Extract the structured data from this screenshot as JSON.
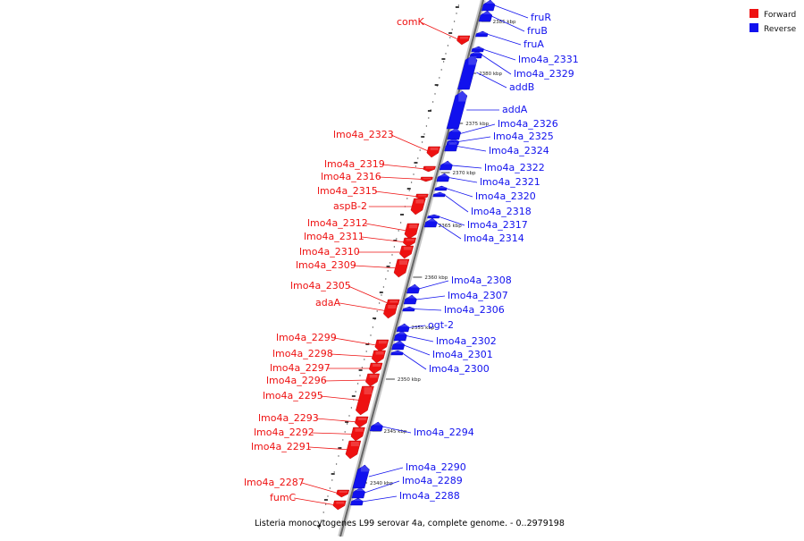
{
  "caption": "Listeria monocytogenes L99 serovar 4a, complete genome. - 0..2979198",
  "legend": [
    {
      "label": "Forward",
      "color": "#ee1111"
    },
    {
      "label": "Reverse",
      "color": "#1111ee"
    }
  ],
  "colors": {
    "forward": "#ee1111",
    "reverse": "#1111ee",
    "backbone": "#777777"
  },
  "ticks": [
    {
      "label": "2385 kbp",
      "pos": 2385
    },
    {
      "label": "2380 kbp",
      "pos": 2380
    },
    {
      "label": "2375 kbp",
      "pos": 2375
    },
    {
      "label": "2370 kbp",
      "pos": 2370
    },
    {
      "label": "2365 kbp",
      "pos": 2365
    },
    {
      "label": "2360 kbp",
      "pos": 2360
    },
    {
      "label": "2355 kbp",
      "pos": 2355
    },
    {
      "label": "2350 kbp",
      "pos": 2350
    },
    {
      "label": "2345 kbp",
      "pos": 2345
    },
    {
      "label": "2340 kbp",
      "pos": 2340
    }
  ],
  "genes": [
    {
      "name": "fruR",
      "strand": "reverse"
    },
    {
      "name": "fruB",
      "strand": "reverse"
    },
    {
      "name": "fruA",
      "strand": "reverse"
    },
    {
      "name": "comK",
      "strand": "forward"
    },
    {
      "name": "lmo4a_2331",
      "strand": "reverse"
    },
    {
      "name": "lmo4a_2329",
      "strand": "reverse"
    },
    {
      "name": "addB",
      "strand": "reverse"
    },
    {
      "name": "addA",
      "strand": "reverse"
    },
    {
      "name": "lmo4a_2326",
      "strand": "reverse"
    },
    {
      "name": "lmo4a_2325",
      "strand": "reverse"
    },
    {
      "name": "lmo4a_2324",
      "strand": "reverse"
    },
    {
      "name": "lmo4a_2323",
      "strand": "forward"
    },
    {
      "name": "lmo4a_2322",
      "strand": "reverse"
    },
    {
      "name": "lmo4a_2319",
      "strand": "forward"
    },
    {
      "name": "lmo4a_2321",
      "strand": "reverse"
    },
    {
      "name": "lmo4a_2316",
      "strand": "forward"
    },
    {
      "name": "lmo4a_2320",
      "strand": "reverse"
    },
    {
      "name": "lmo4a_2315",
      "strand": "forward"
    },
    {
      "name": "lmo4a_2318",
      "strand": "reverse"
    },
    {
      "name": "aspB-2",
      "strand": "forward"
    },
    {
      "name": "lmo4a_2317",
      "strand": "reverse"
    },
    {
      "name": "lmo4a_2314",
      "strand": "reverse"
    },
    {
      "name": "lmo4a_2312",
      "strand": "forward"
    },
    {
      "name": "lmo4a_2311",
      "strand": "forward"
    },
    {
      "name": "lmo4a_2310",
      "strand": "forward"
    },
    {
      "name": "lmo4a_2309",
      "strand": "forward"
    },
    {
      "name": "lmo4a_2308",
      "strand": "reverse"
    },
    {
      "name": "lmo4a_2307",
      "strand": "reverse"
    },
    {
      "name": "lmo4a_2305",
      "strand": "forward"
    },
    {
      "name": "adaA",
      "strand": "forward"
    },
    {
      "name": "lmo4a_2306",
      "strand": "reverse"
    },
    {
      "name": "ogt-2",
      "strand": "reverse"
    },
    {
      "name": "lmo4a_2302",
      "strand": "reverse"
    },
    {
      "name": "lmo4a_2299",
      "strand": "forward"
    },
    {
      "name": "lmo4a_2301",
      "strand": "reverse"
    },
    {
      "name": "lmo4a_2298",
      "strand": "forward"
    },
    {
      "name": "lmo4a_2300",
      "strand": "reverse"
    },
    {
      "name": "lmo4a_2297",
      "strand": "forward"
    },
    {
      "name": "lmo4a_2296",
      "strand": "forward"
    },
    {
      "name": "lmo4a_2295",
      "strand": "forward"
    },
    {
      "name": "lmo4a_2293",
      "strand": "forward"
    },
    {
      "name": "lmo4a_2294",
      "strand": "reverse"
    },
    {
      "name": "lmo4a_2292",
      "strand": "forward"
    },
    {
      "name": "lmo4a_2291",
      "strand": "forward"
    },
    {
      "name": "lmo4a_2290",
      "strand": "reverse"
    },
    {
      "name": "lmo4a_2289",
      "strand": "reverse"
    },
    {
      "name": "lmo4a_2287",
      "strand": "forward"
    },
    {
      "name": "lmo4a_2288",
      "strand": "reverse"
    },
    {
      "name": "fumC",
      "strand": "forward"
    }
  ]
}
